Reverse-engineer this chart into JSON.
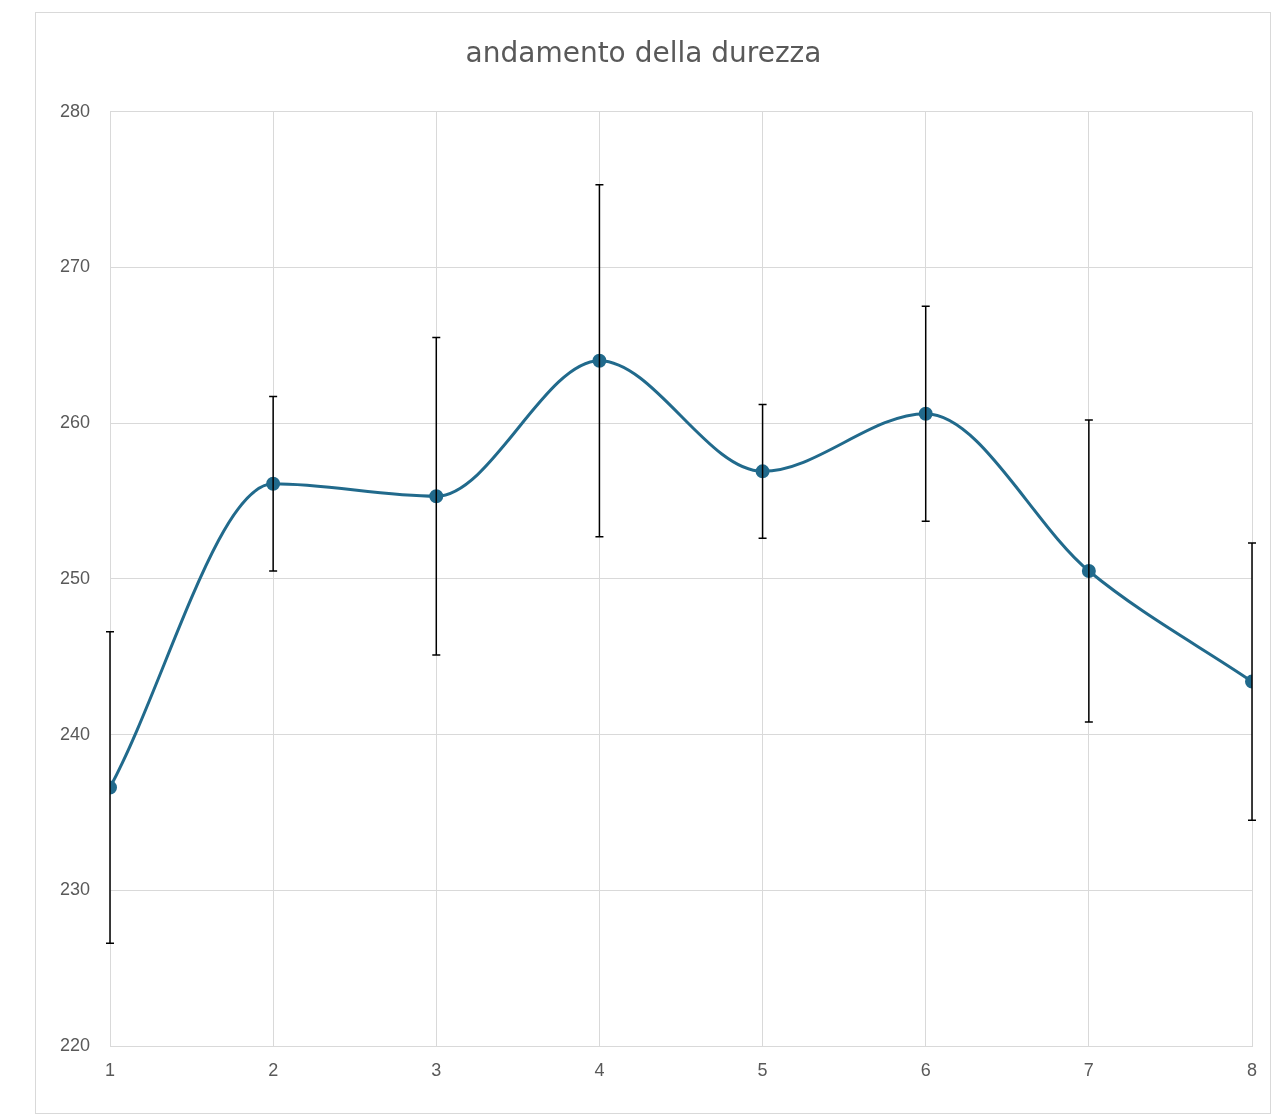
{
  "chart_data": {
    "type": "line",
    "title": "andamento della durezza",
    "x": [
      1,
      2,
      3,
      4,
      5,
      6,
      7,
      8
    ],
    "series": [
      {
        "color": "#216a8c",
        "values": [
          236.6,
          256.1,
          255.3,
          264.0,
          256.9,
          260.6,
          250.5,
          243.4
        ],
        "errors": [
          10.0,
          5.6,
          10.2,
          11.3,
          4.3,
          6.9,
          9.7,
          8.9
        ]
      }
    ],
    "xlim": [
      1,
      8
    ],
    "xticks": [
      1,
      2,
      3,
      4,
      5,
      6,
      7,
      8
    ],
    "ylim": [
      220,
      280
    ],
    "yticks": [
      220,
      230,
      240,
      250,
      260,
      270,
      280
    ],
    "grid": true,
    "marker": "circle",
    "line_style": "solid",
    "legend": false
  }
}
